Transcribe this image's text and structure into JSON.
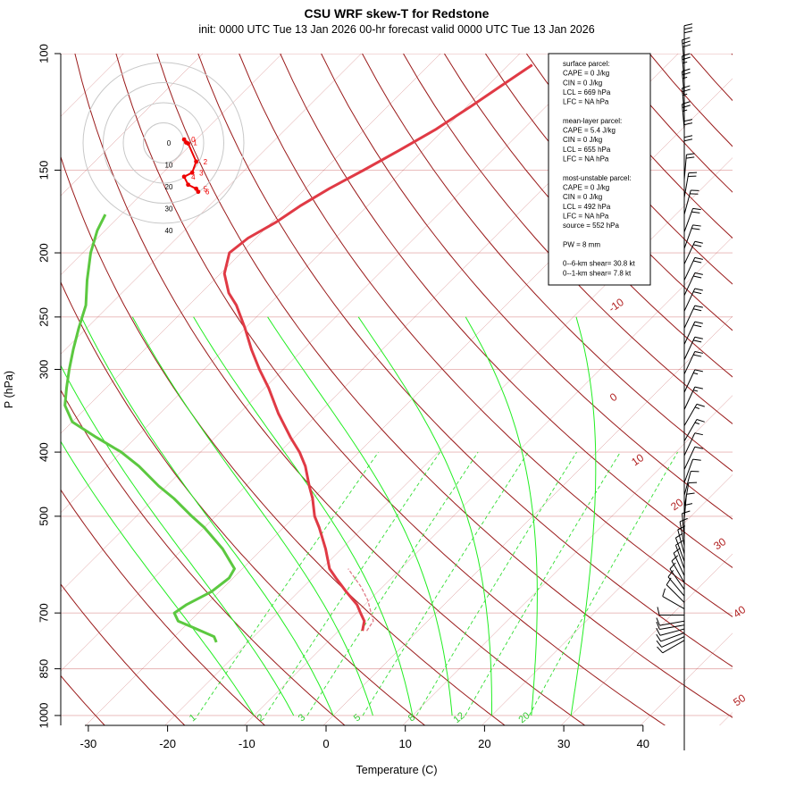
{
  "chart_data": {
    "type": "skew-t",
    "title": "CSU WRF skew-T for Redstone",
    "subtitle": "init: 0000 UTC Tue 13 Jan 2026     00-hr forecast valid 0000 UTC Tue 13 Jan 2026",
    "xlabel": "Temperature (C)",
    "ylabel": "P (hPa)",
    "xlim": [
      -33,
      52
    ],
    "ylim": [
      1000,
      100
    ],
    "x_ticks": [
      -30,
      -20,
      -10,
      0,
      10,
      20,
      30,
      40
    ],
    "pressure_levels": [
      100,
      150,
      200,
      250,
      300,
      400,
      500,
      700,
      850,
      1000
    ],
    "isotherm_labels": [
      -10,
      0,
      10,
      20,
      30,
      40,
      50
    ],
    "mixing_ratio_labels": [
      1,
      2,
      3,
      5,
      8,
      12,
      20
    ],
    "temperature_profile": {
      "pressure": [
        745,
        720,
        700,
        680,
        650,
        620,
        600,
        560,
        520,
        500,
        470,
        450,
        420,
        400,
        380,
        350,
        320,
        300,
        280,
        260,
        240,
        230,
        215,
        200,
        190,
        180,
        170,
        160,
        150,
        140,
        130,
        120,
        110,
        104
      ],
      "temperature": [
        -7,
        -8,
        -9.5,
        -11,
        -14,
        -17,
        -19,
        -22,
        -25.5,
        -27.5,
        -30,
        -32,
        -35,
        -37.5,
        -40.5,
        -45,
        -49.5,
        -53,
        -56.5,
        -60,
        -64,
        -66.5,
        -69.5,
        -71.5,
        -71,
        -69.5,
        -68.5,
        -67,
        -65,
        -63,
        -61,
        -59.5,
        -58,
        -57
      ]
    },
    "dewpoint_profile": {
      "pressure": [
        775,
        760,
        735,
        720,
        700,
        680,
        650,
        620,
        600,
        560,
        520,
        500,
        470,
        450,
        420,
        400,
        380,
        360,
        340,
        320,
        300,
        280,
        260,
        240,
        220,
        200,
        185,
        175
      ],
      "dewpoint": [
        -24,
        -25,
        -29,
        -31.5,
        -33,
        -32.5,
        -31,
        -30.5,
        -31,
        -35,
        -40,
        -43,
        -47.5,
        -51,
        -56,
        -60,
        -65,
        -70,
        -73,
        -75,
        -77,
        -79,
        -81,
        -83,
        -86,
        -89,
        -91,
        -92
      ]
    },
    "parcel_trace": {
      "pressure": [
        745,
        720,
        700,
        670,
        640,
        600
      ],
      "temperature": [
        -6.8,
        -7.2,
        -8.5,
        -10.5,
        -13,
        -17
      ]
    },
    "hodograph": {
      "ring_labels": [
        "0",
        "10",
        "20",
        "30",
        "40"
      ],
      "km_labels": [
        "0",
        "1",
        "2",
        "3",
        "4",
        "5",
        "6"
      ],
      "u_kt": [
        0.5,
        1.5,
        2.5,
        6.5,
        4.5,
        0.5,
        2.5,
        6.5,
        7.5
      ],
      "v_kt": [
        -0.5,
        -2,
        -2.5,
        -11.5,
        -17,
        -19,
        -23,
        -25,
        -26.5
      ]
    },
    "wind_barbs": [
      {
        "p": 770,
        "dir": 240,
        "spd": 10
      },
      {
        "p": 760,
        "dir": 245,
        "spd": 10
      },
      {
        "p": 750,
        "dir": 250,
        "spd": 10
      },
      {
        "p": 740,
        "dir": 255,
        "spd": 10
      },
      {
        "p": 730,
        "dir": 260,
        "spd": 10
      },
      {
        "p": 720,
        "dir": 260,
        "spd": 10
      },
      {
        "p": 705,
        "dir": 270,
        "spd": 10
      },
      {
        "p": 690,
        "dir": 300,
        "spd": 10
      },
      {
        "p": 675,
        "dir": 315,
        "spd": 10
      },
      {
        "p": 660,
        "dir": 320,
        "spd": 10
      },
      {
        "p": 645,
        "dir": 325,
        "spd": 10
      },
      {
        "p": 630,
        "dir": 330,
        "spd": 10
      },
      {
        "p": 615,
        "dir": 335,
        "spd": 10
      },
      {
        "p": 600,
        "dir": 340,
        "spd": 10
      },
      {
        "p": 585,
        "dir": 340,
        "spd": 10
      },
      {
        "p": 570,
        "dir": 345,
        "spd": 10
      },
      {
        "p": 555,
        "dir": 350,
        "spd": 10
      },
      {
        "p": 540,
        "dir": 355,
        "spd": 10
      },
      {
        "p": 525,
        "dir": 0,
        "spd": 10
      },
      {
        "p": 505,
        "dir": 5,
        "spd": 10
      },
      {
        "p": 485,
        "dir": 10,
        "spd": 10
      },
      {
        "p": 465,
        "dir": 15,
        "spd": 10
      },
      {
        "p": 445,
        "dir": 20,
        "spd": 10
      },
      {
        "p": 425,
        "dir": 25,
        "spd": 10
      },
      {
        "p": 405,
        "dir": 25,
        "spd": 10
      },
      {
        "p": 385,
        "dir": 30,
        "spd": 15
      },
      {
        "p": 365,
        "dir": 30,
        "spd": 15
      },
      {
        "p": 345,
        "dir": 25,
        "spd": 15
      },
      {
        "p": 325,
        "dir": 25,
        "spd": 15
      },
      {
        "p": 305,
        "dir": 25,
        "spd": 20
      },
      {
        "p": 290,
        "dir": 25,
        "spd": 20
      },
      {
        "p": 275,
        "dir": 25,
        "spd": 20
      },
      {
        "p": 260,
        "dir": 25,
        "spd": 20
      },
      {
        "p": 245,
        "dir": 25,
        "spd": 20
      },
      {
        "p": 232,
        "dir": 25,
        "spd": 20
      },
      {
        "p": 220,
        "dir": 25,
        "spd": 20
      },
      {
        "p": 208,
        "dir": 25,
        "spd": 20
      },
      {
        "p": 197,
        "dir": 20,
        "spd": 20
      },
      {
        "p": 186,
        "dir": 20,
        "spd": 20
      },
      {
        "p": 175,
        "dir": 15,
        "spd": 20
      },
      {
        "p": 165,
        "dir": 10,
        "spd": 20
      },
      {
        "p": 155,
        "dir": 5,
        "spd": 20
      },
      {
        "p": 146,
        "dir": 0,
        "spd": 20
      },
      {
        "p": 138,
        "dir": 0,
        "spd": 20
      },
      {
        "p": 130,
        "dir": 355,
        "spd": 25
      },
      {
        "p": 123,
        "dir": 355,
        "spd": 25
      },
      {
        "p": 116,
        "dir": 355,
        "spd": 25
      },
      {
        "p": 110,
        "dir": 355,
        "spd": 25
      },
      {
        "p": 104,
        "dir": 355,
        "spd": 30
      },
      {
        "p": 99,
        "dir": 0,
        "spd": 30
      }
    ],
    "indices": [
      "surface parcel:",
      "CAPE = 0 J/kg",
      "CIN = 0 J/kg",
      "LCL = 669 hPa",
      "LFC = NA hPa",
      "",
      "mean-layer parcel:",
      "CAPE = 5.4 J/kg",
      "CIN = 0 J/kg",
      "LCL = 655 hPa",
      "LFC = NA hPa",
      "",
      "most-unstable parcel:",
      "CAPE = 0 J/kg",
      "CIN = 0 J/kg",
      "LCL = 492 hPa",
      "LFC = NA hPa",
      "source = 552 hPa",
      "",
      "PW =  8 mm",
      "",
      "0--6-km shear= 30.8 kt",
      "0--1-km shear= 7.8 kt"
    ],
    "colors": {
      "temperature": "#e03a45",
      "dewpoint": "#5cc840",
      "parcel": "#e07a86",
      "isotherm": "#b22222",
      "dry_adiabat": "#9a1a1a",
      "moist_adiabat": "#22ee22",
      "mixing_ratio": "#33dd33",
      "isobar": "#e7b3b3",
      "hodograph": "#ee0000"
    }
  }
}
